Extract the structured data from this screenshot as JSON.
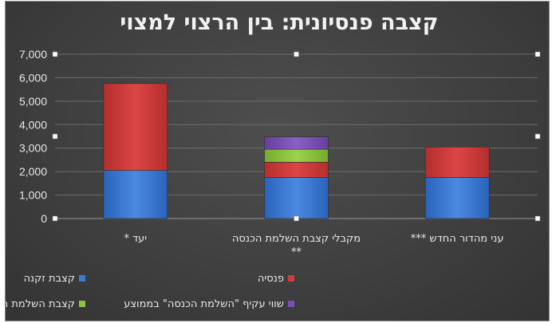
{
  "chart_data": {
    "type": "bar",
    "stacked": true,
    "title": "קצבה פנסיונית: בין הרצוי למצוי",
    "categories": [
      [
        "יעד *"
      ],
      [
        "מקבלי קצבת השלמת הכנסה",
        "**"
      ],
      [
        "עני מהדור החדש ***"
      ]
    ],
    "series": [
      {
        "name": "קצבת זקנה",
        "color": "#3a7ad6",
        "values": [
          2050,
          1750,
          1750
        ]
      },
      {
        "name": "פנסיה",
        "color": "#d23c3c",
        "values": [
          3700,
          650,
          1300
        ]
      },
      {
        "name": "קצבת השלמת הכנסה ממוצעת",
        "color": "#8cc63f",
        "values": [
          0,
          550,
          0
        ]
      },
      {
        "name": "שווי עקיף \"השלמת הכנסה\" בממוצע",
        "color": "#7b4fb5",
        "values": [
          0,
          530,
          0
        ]
      }
    ],
    "ylim": [
      0,
      7000
    ],
    "yticks": [
      "0",
      "1,000",
      "2,000",
      "3,000",
      "4,000",
      "5,000",
      "6,000",
      "7,000"
    ],
    "grid": true,
    "legend_position": "bottom"
  }
}
